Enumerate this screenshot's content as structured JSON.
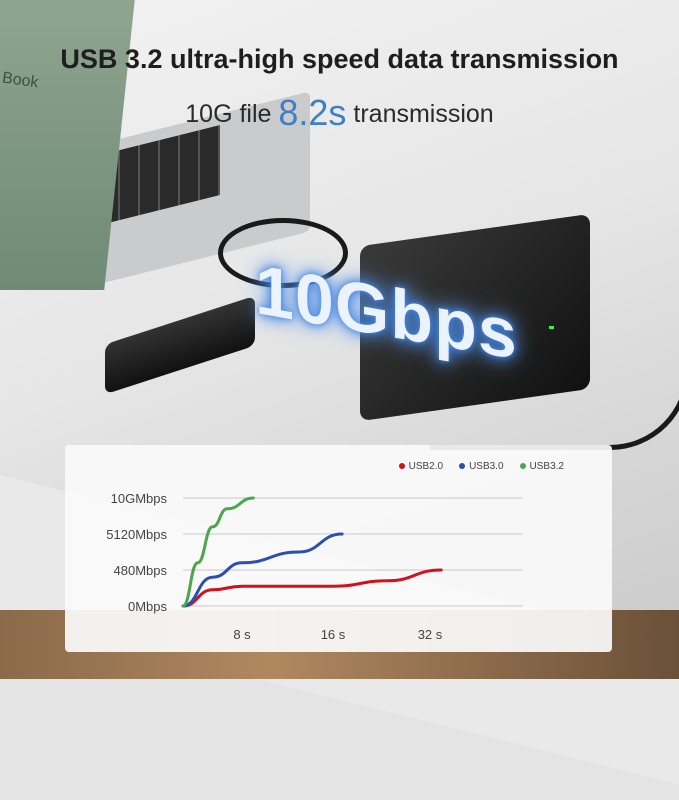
{
  "headline": "USB 3.2 ultra-high speed data transmission",
  "subline": {
    "prefix": "10G file",
    "highlight": "8.2s",
    "suffix": "transmission"
  },
  "badge": "10Gbps",
  "laptop_brand_text": "Book",
  "colors": {
    "highlight": "#3f7fc8",
    "usb20": "#d0121b",
    "usb30": "#2a4fb0",
    "usb32": "#4ca64c"
  },
  "chart_data": {
    "type": "line",
    "title": "",
    "xlabel": "",
    "ylabel": "",
    "x_ticks": [
      {
        "value": 8,
        "label": "8 s"
      },
      {
        "value": 16,
        "label": "16 s"
      },
      {
        "value": 32,
        "label": "32 s"
      }
    ],
    "y_ticks": [
      "0Mbps",
      "480Mbps",
      "5120Mbps",
      "10GMbps"
    ],
    "y_scale": "ordinal (value = index into y_ticks)",
    "grid": true,
    "legend_placement": "top-right",
    "series": [
      {
        "name": "USB2.0",
        "color": "#d0121b",
        "points": [
          [
            0,
            0
          ],
          [
            4,
            0.45
          ],
          [
            8,
            0.55
          ],
          [
            16,
            0.55
          ],
          [
            25,
            0.7
          ],
          [
            34,
            1.0
          ]
        ]
      },
      {
        "name": "USB3.0",
        "color": "#2a4fb0",
        "points": [
          [
            0,
            0
          ],
          [
            4,
            0.8
          ],
          [
            8,
            1.2
          ],
          [
            13,
            1.5
          ],
          [
            17.5,
            2.0
          ]
        ]
      },
      {
        "name": "USB3.2",
        "color": "#4ca64c",
        "points": [
          [
            0,
            0
          ],
          [
            2,
            1.2
          ],
          [
            4,
            2.2
          ],
          [
            6,
            2.7
          ],
          [
            9,
            3.0
          ]
        ]
      }
    ]
  }
}
